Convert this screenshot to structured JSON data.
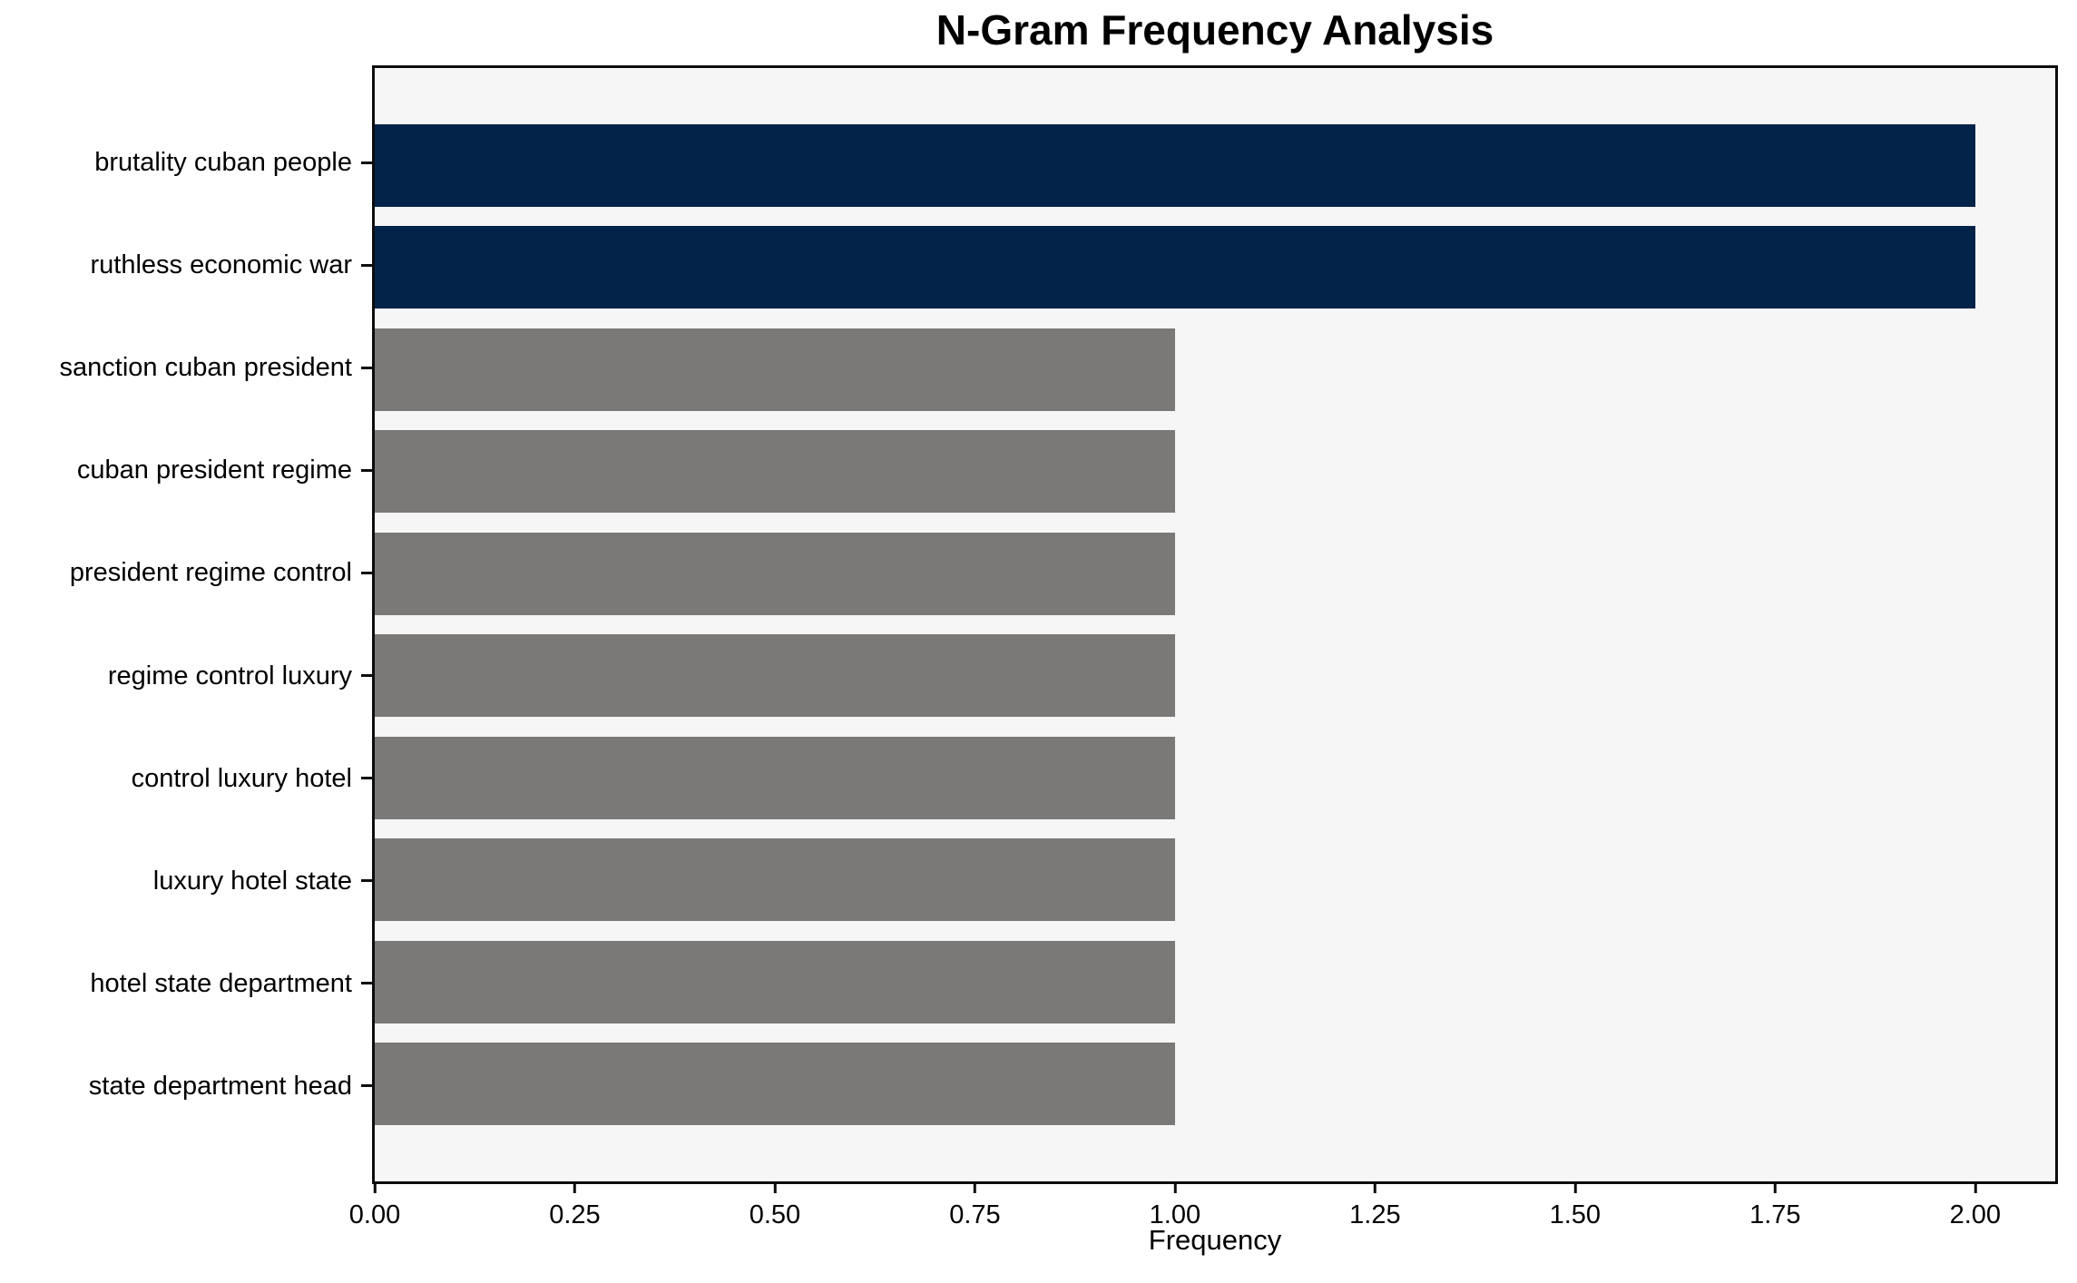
{
  "chart_data": {
    "type": "bar",
    "orientation": "horizontal",
    "title": "N-Gram Frequency Analysis",
    "xlabel": "Frequency",
    "ylabel": "",
    "categories": [
      "brutality cuban people",
      "ruthless economic war",
      "sanction cuban president",
      "cuban president regime",
      "president regime control",
      "regime control luxury",
      "control luxury hotel",
      "luxury hotel state",
      "hotel state department",
      "state department head"
    ],
    "values": [
      2,
      2,
      1,
      1,
      1,
      1,
      1,
      1,
      1,
      1
    ],
    "bar_colors": [
      "#032349",
      "#032349",
      "#7a7977",
      "#7a7977",
      "#7a7977",
      "#7a7977",
      "#7a7977",
      "#7a7977",
      "#7a7977",
      "#7a7977"
    ],
    "xlim": [
      0,
      2.1
    ],
    "xticks": [
      0,
      0.25,
      0.5,
      0.75,
      1,
      1.25,
      1.5,
      1.75,
      2
    ],
    "xtick_labels": [
      "0.00",
      "0.25",
      "0.50",
      "0.75",
      "1.00",
      "1.25",
      "1.50",
      "1.75",
      "2.00"
    ],
    "grid": false,
    "legend": null,
    "bar_height_frac": 0.8,
    "colors": {
      "highlight": "#032349",
      "default_bar": "#7a7977",
      "plot_background": "#f7f6f6",
      "figure_background": "#ffffff",
      "axis": "#0d0d0d",
      "text": "#000000"
    }
  }
}
